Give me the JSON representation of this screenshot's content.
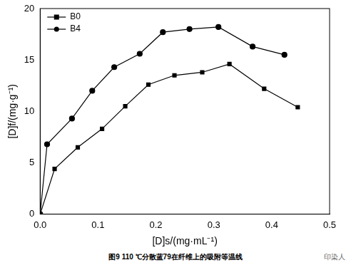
{
  "chart_data": {
    "type": "line",
    "title": "图9  110 ℃分散蓝79在纤维上的吸附等温线",
    "annotations": [
      "印染人"
    ],
    "x_label": "[D]s/(mg·mL⁻¹)",
    "y_label": "[D]f/(mg·g⁻¹)",
    "series": [
      {
        "name": "B0",
        "color": "#000000",
        "marker": "square",
        "x": [
          0,
          0.025,
          0.065,
          0.107,
          0.147,
          0.187,
          0.232,
          0.28,
          0.327,
          0.387,
          0.445
        ],
        "values": [
          0,
          4.4,
          6.5,
          8.3,
          10.5,
          12.6,
          13.5,
          13.8,
          14.6,
          12.2,
          10.4
        ]
      },
      {
        "name": "B4",
        "color": "#000000",
        "marker": "circle",
        "x": [
          0,
          0.012,
          0.055,
          0.09,
          0.128,
          0.172,
          0.212,
          0.258,
          0.308,
          0.367,
          0.422
        ],
        "values": [
          0,
          6.8,
          9.3,
          12.0,
          14.3,
          15.6,
          17.7,
          18.0,
          18.2,
          16.3,
          15.5
        ]
      }
    ],
    "xlim": [
      0,
      0.5
    ],
    "xticks": [
      {
        "value": 0,
        "label": "0.0"
      },
      0.1,
      0.2,
      0.3,
      0.4,
      0.5
    ],
    "ylim": [
      0,
      20
    ],
    "yticks": [
      0,
      5,
      10,
      15,
      20
    ],
    "grid": false,
    "legend": "upper left"
  }
}
